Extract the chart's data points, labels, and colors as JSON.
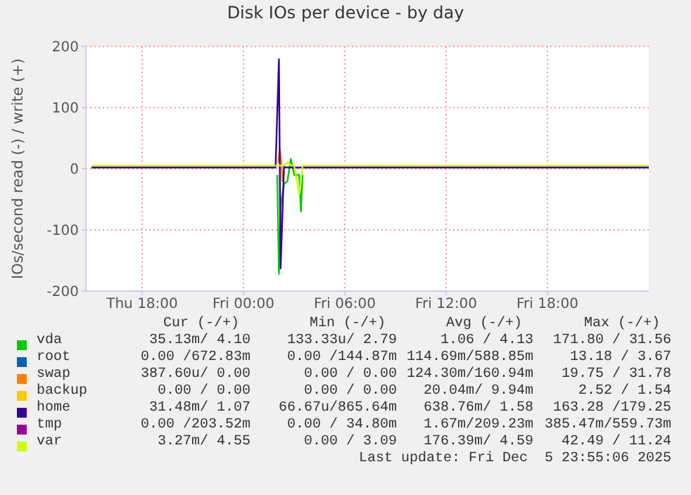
{
  "chart_data": {
    "type": "line",
    "title": "Disk IOs per device - by day",
    "ylabel": "IOs/second read (-) / write (+)",
    "x": [
      "2025-12-04T15:00",
      "2025-12-04T17:00",
      "2025-12-04T19:00",
      "2025-12-04T21:00",
      "2025-12-04T23:00",
      "2025-12-05T01:00",
      "2025-12-05T01:54",
      "2025-12-05T02:06",
      "2025-12-05T02:12",
      "2025-12-05T02:24",
      "2025-12-05T02:36",
      "2025-12-05T02:48",
      "2025-12-05T03:00",
      "2025-12-05T03:18",
      "2025-12-05T03:30",
      "2025-12-05T03:48",
      "2025-12-05T05:00",
      "2025-12-05T07:00",
      "2025-12-05T09:00",
      "2025-12-05T11:00",
      "2025-12-05T13:00",
      "2025-12-05T15:00",
      "2025-12-05T17:00",
      "2025-12-05T19:00",
      "2025-12-05T21:00",
      "2025-12-05T23:00",
      "2025-12-06T00:00"
    ],
    "xlim": [
      "2025-12-04T14:40",
      "2025-12-06T00:00"
    ],
    "xticks": [
      {
        "value": "2025-12-04T18:00",
        "label": "Thu 18:00"
      },
      {
        "value": "2025-12-05T00:00",
        "label": "Fri 00:00"
      },
      {
        "value": "2025-12-05T06:00",
        "label": "Fri 06:00"
      },
      {
        "value": "2025-12-05T12:00",
        "label": "Fri 12:00"
      },
      {
        "value": "2025-12-05T18:00",
        "label": "Fri 18:00"
      }
    ],
    "ylim": [
      -200,
      200
    ],
    "yticks": [
      -200,
      -100,
      0,
      100,
      200
    ],
    "grid": true,
    "legend": "bottom",
    "marker": "none",
    "line_style": "solid",
    "series": [
      {
        "name": "vda",
        "color": "#00cc00",
        "x": [
          "2025-12-05T02:00",
          "2025-12-05T02:06",
          "2025-12-05T02:12",
          "2025-12-05T02:24",
          "2025-12-05T02:36",
          "2025-12-05T02:48",
          "2025-12-05T03:00",
          "2025-12-05T03:18",
          "2025-12-05T03:24",
          "2025-12-05T03:30"
        ],
        "values": [
          -10,
          -172,
          -60,
          -25,
          -20,
          16,
          -10,
          -10,
          -70,
          -10
        ]
      },
      {
        "name": "root",
        "color": "#0066b3",
        "values": [
          null,
          null,
          null,
          null,
          null,
          null,
          null,
          null,
          null,
          null,
          null,
          null,
          null,
          null,
          null,
          null,
          null,
          null,
          null,
          null,
          null,
          null,
          null,
          null,
          null,
          null,
          null
        ]
      },
      {
        "name": "swap",
        "color": "#ff8000",
        "x": [
          "2025-12-05T02:03",
          "2025-12-05T02:09",
          "2025-12-05T02:15",
          "2025-12-05T02:18",
          "2025-12-05T02:24"
        ],
        "values": [
          10,
          32,
          10,
          -20,
          -5
        ]
      },
      {
        "name": "backup",
        "color": "#ffcc00",
        "values": [
          null,
          null,
          null,
          null,
          null,
          null,
          null,
          null,
          null,
          null,
          null,
          null,
          null,
          null,
          null,
          null,
          null,
          null,
          null,
          null,
          null,
          null,
          null,
          null,
          null,
          null,
          null
        ]
      },
      {
        "name": "home",
        "color": "#330099",
        "values": [
          2,
          2,
          2,
          2,
          2,
          2,
          2,
          179,
          -163,
          3,
          2,
          2,
          2,
          2,
          2,
          2,
          2,
          2,
          2,
          2,
          2,
          2,
          2,
          2,
          2,
          2,
          2
        ]
      },
      {
        "name": "tmp",
        "color": "#990099",
        "values": [
          null,
          null,
          null,
          null,
          null,
          null,
          null,
          null,
          null,
          null,
          null,
          null,
          null,
          null,
          null,
          null,
          null,
          null,
          null,
          null,
          null,
          null,
          null,
          null,
          null,
          null,
          null
        ]
      },
      {
        "name": "var",
        "color": "#ccff00",
        "values": [
          5,
          5,
          5,
          5,
          5,
          5,
          5,
          6,
          5,
          6,
          11,
          6,
          5,
          -42,
          5,
          5,
          5,
          5,
          5,
          5,
          5,
          5,
          5,
          5,
          5,
          5,
          5
        ]
      }
    ],
    "annotations": [
      "Cur (-/+)",
      "Min (-/+)",
      "Avg (-/+)",
      "Max (-/+)",
      "35.13m/ 4.10",
      "133.33u/ 2.79",
      "1.06 / 4.13",
      "171.80 / 31.56",
      "0.00 /672.83m",
      "0.00 /144.87m",
      "114.69m/588.85m",
      "13.18 / 3.67",
      "387.60u/ 0.00",
      "0.00 / 0.00",
      "124.30m/160.94m",
      "19.75 / 31.78",
      "0.00 / 0.00",
      "0.00 / 0.00",
      "20.04m/ 9.94m",
      "2.52 / 1.54",
      "31.48m/ 1.07",
      "66.67u/865.64m",
      "638.76m/ 1.58",
      "163.28 /179.25",
      "0.00 /203.52m",
      "0.00 / 34.80m",
      "1.67m/209.23m",
      "385.47m/559.73m",
      "3.27m/ 4.55",
      "0.00 / 3.09",
      "176.39m/ 4.59",
      "42.49 / 11.24",
      "Last update: Fri Dec  5 23:55:06 2025"
    ]
  }
}
